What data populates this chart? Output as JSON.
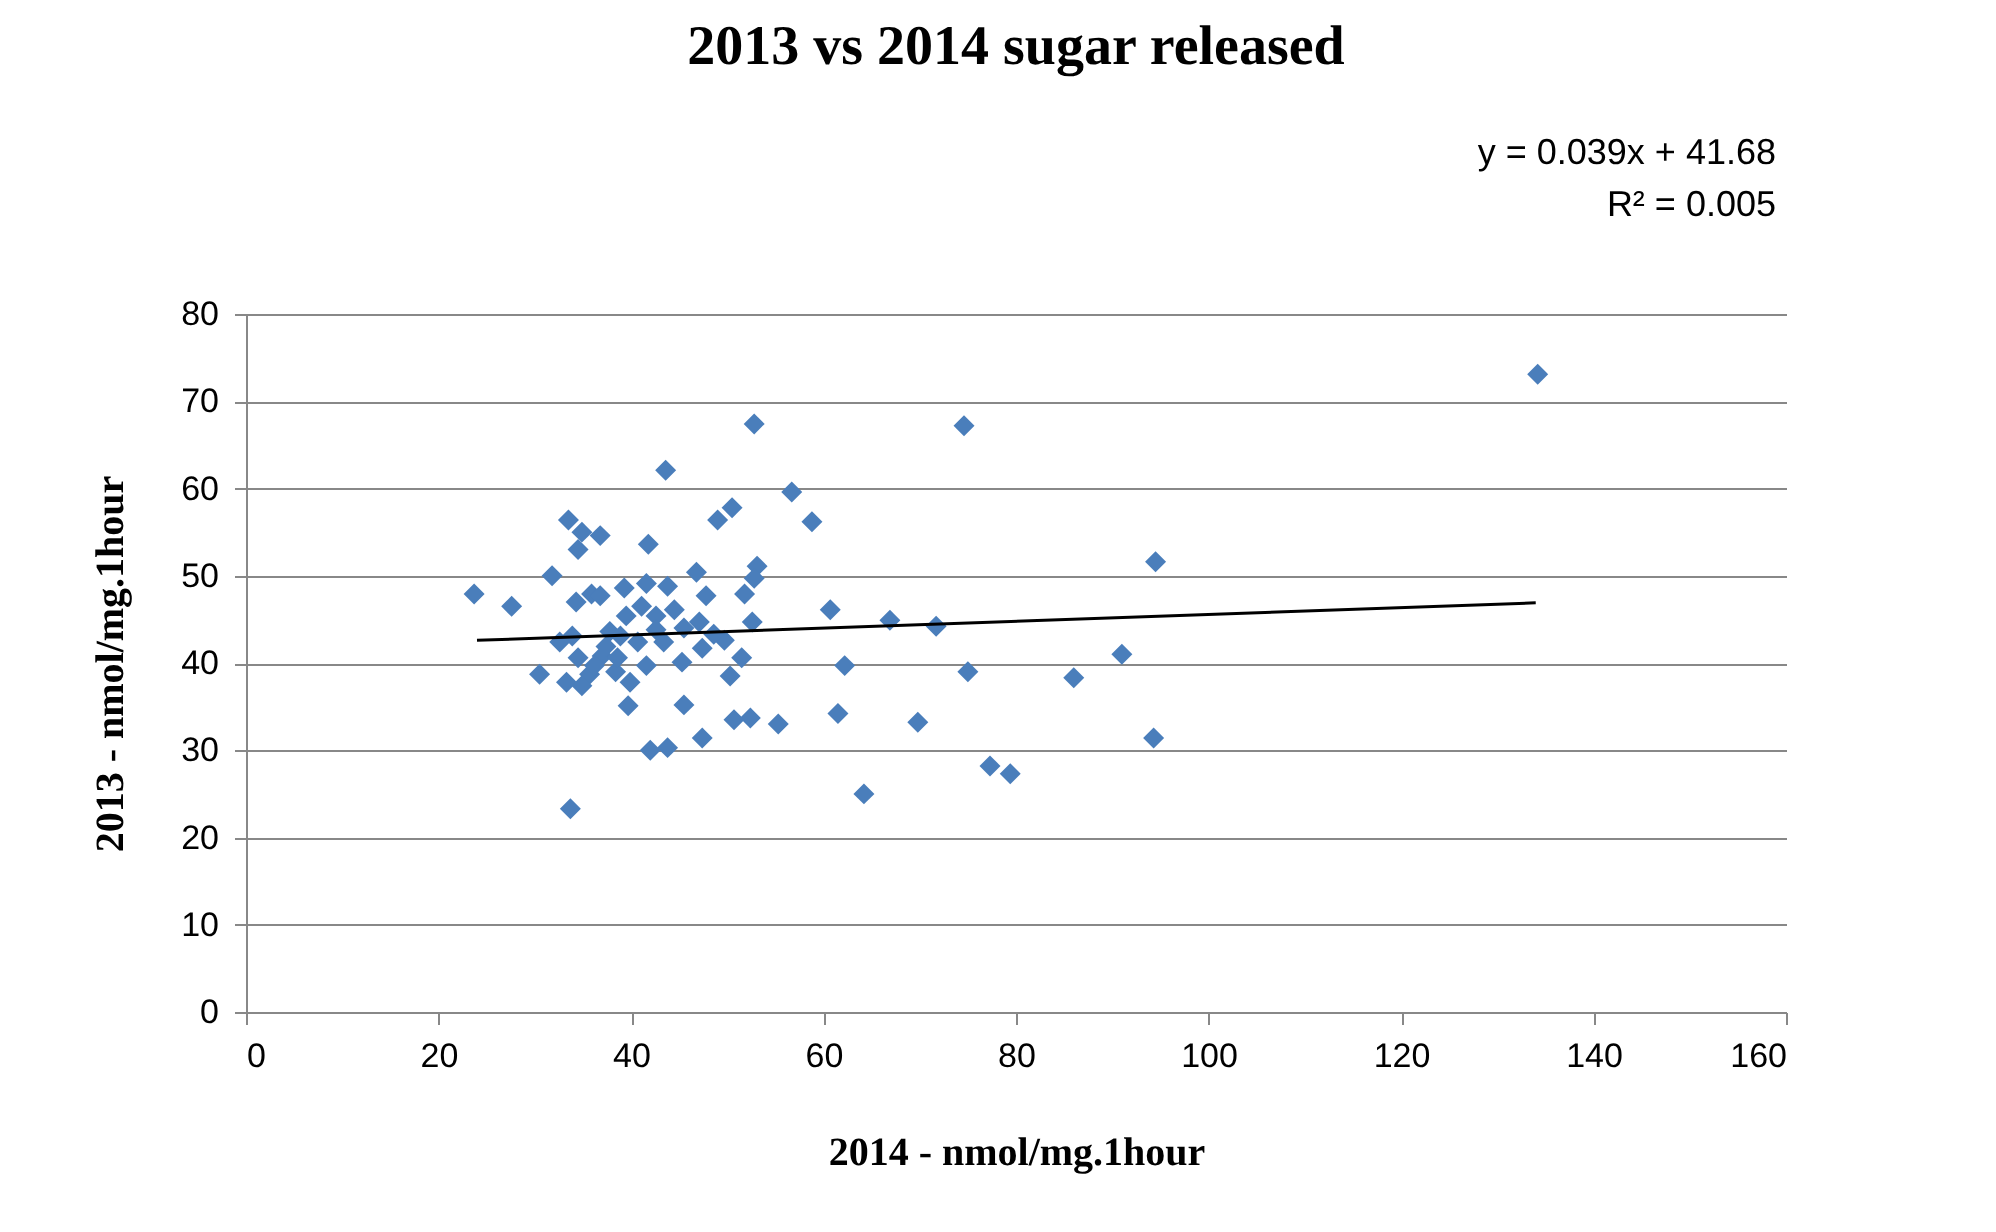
{
  "chart_data": {
    "type": "scatter",
    "title": "2013 vs 2014 sugar released",
    "xlabel": "2014 - nmol/mg.1hour",
    "ylabel": "2013 - nmol/mg.1hour",
    "annotations": [
      "y = 0.039x + 41.68",
      "R² = 0.005"
    ],
    "xlim": [
      0,
      160
    ],
    "xticks": [
      0,
      20,
      40,
      60,
      80,
      100,
      120,
      140,
      160
    ],
    "ylim": [
      0,
      80
    ],
    "yticks": [
      0,
      10,
      20,
      30,
      40,
      50,
      60,
      70,
      80
    ],
    "grid": "y",
    "series": [
      {
        "color": "#4a7ebb",
        "marker": "diamond",
        "x": [
          23.7,
          27.6,
          30.5,
          31.8,
          33.5,
          34.9,
          34.5,
          34.3,
          36.8,
          33.7,
          43.6,
          52.8,
          74.6,
          134.2,
          56.7,
          58.8,
          50.5,
          49.0,
          41.8,
          60.7,
          62.2,
          66.9,
          71.7,
          75.0,
          61.5,
          69.8,
          64.2,
          77.3,
          79.4,
          86.0,
          91.0,
          94.3,
          94.5,
          52.4,
          50.7,
          55.3,
          47.4,
          43.8,
          42.0,
          45.5,
          39.7,
          41.6,
          50.3,
          51.5,
          45.3,
          47.4,
          49.7,
          48.6,
          47.1,
          52.6,
          53.1,
          52.8,
          51.8,
          47.8,
          46.8,
          43.8,
          41.6,
          39.3,
          35.9,
          39.5,
          37.8,
          33.9,
          32.6,
          34.5,
          35.7,
          33.3,
          34.9,
          37.0,
          38.4,
          39.9,
          40.7,
          43.4,
          42.6,
          44.5,
          45.5,
          36.8,
          37.4,
          38.6,
          36.2,
          42.6,
          38.9,
          41.1
        ],
        "values": [
          47.9,
          46.5,
          38.7,
          50.0,
          56.4,
          55.0,
          53.0,
          47.0,
          54.6,
          23.3,
          62.1,
          67.4,
          67.2,
          73.1,
          59.6,
          56.2,
          57.8,
          56.4,
          53.6,
          46.1,
          39.7,
          44.9,
          44.2,
          39.0,
          34.2,
          33.2,
          25.0,
          28.2,
          27.3,
          38.3,
          41.0,
          31.4,
          51.6,
          33.7,
          33.5,
          33.0,
          31.4,
          30.3,
          30.0,
          35.2,
          35.1,
          39.7,
          38.5,
          40.6,
          40.1,
          41.7,
          42.6,
          43.3,
          44.7,
          44.7,
          51.1,
          49.7,
          47.9,
          47.7,
          50.4,
          48.8,
          49.1,
          48.6,
          47.9,
          45.4,
          43.6,
          43.1,
          42.4,
          40.6,
          38.7,
          37.8,
          37.4,
          40.8,
          39.0,
          37.8,
          42.4,
          42.4,
          45.4,
          46.1,
          44.0,
          47.7,
          41.9,
          40.6,
          39.7,
          43.8,
          43.1,
          46.5
        ]
      },
      {
        "type": "line",
        "color": "#000000",
        "x": [
          24,
          134
        ],
        "values": [
          42.6,
          46.9
        ]
      }
    ]
  }
}
